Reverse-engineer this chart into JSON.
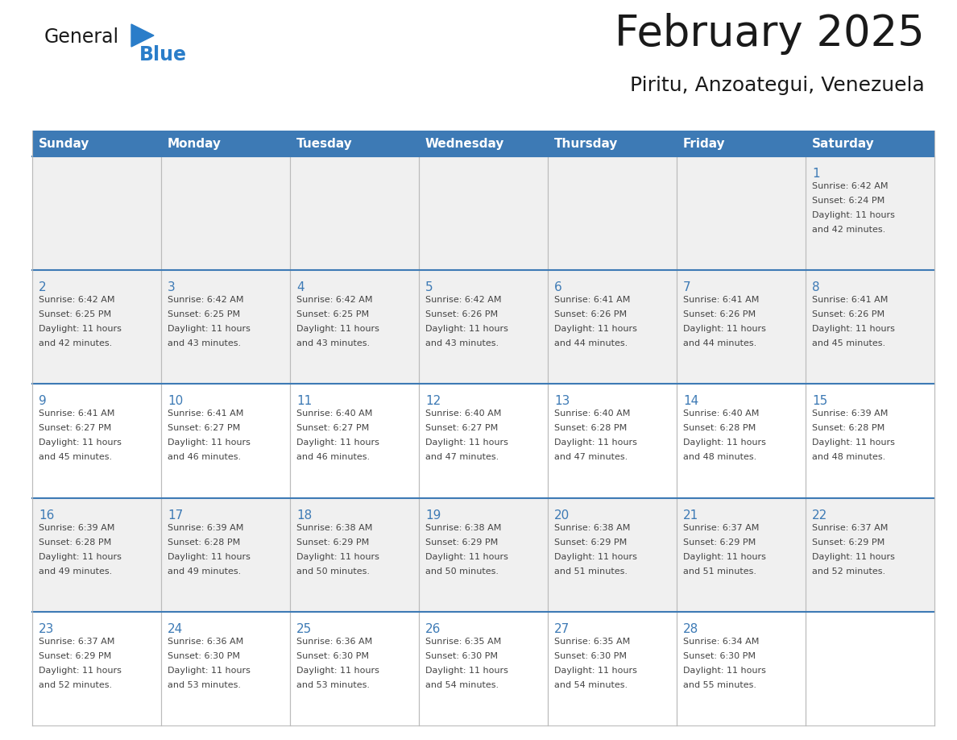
{
  "title": "February 2025",
  "subtitle": "Piritu, Anzoategui, Venezuela",
  "header_color": "#3d7ab5",
  "header_text_color": "#ffffff",
  "days_of_week": [
    "Sunday",
    "Monday",
    "Tuesday",
    "Wednesday",
    "Thursday",
    "Friday",
    "Saturday"
  ],
  "bg_color": "#ffffff",
  "row0_bg": "#f0f0f0",
  "row1_bg": "#f0f0f0",
  "row2_bg": "#ffffff",
  "row3_bg": "#f0f0f0",
  "row4_bg": "#ffffff",
  "cell_text_color": "#444444",
  "date_color": "#3d7ab5",
  "grid_color": "#bbbbbb",
  "row_border_color": "#3d7ab5",
  "calendar_data": [
    [
      null,
      null,
      null,
      null,
      null,
      null,
      {
        "day": 1,
        "sunrise": "6:42 AM",
        "sunset": "6:24 PM",
        "daylight": "11 hours",
        "daylight2": "and 42 minutes."
      }
    ],
    [
      {
        "day": 2,
        "sunrise": "6:42 AM",
        "sunset": "6:25 PM",
        "daylight": "11 hours",
        "daylight2": "and 42 minutes."
      },
      {
        "day": 3,
        "sunrise": "6:42 AM",
        "sunset": "6:25 PM",
        "daylight": "11 hours",
        "daylight2": "and 43 minutes."
      },
      {
        "day": 4,
        "sunrise": "6:42 AM",
        "sunset": "6:25 PM",
        "daylight": "11 hours",
        "daylight2": "and 43 minutes."
      },
      {
        "day": 5,
        "sunrise": "6:42 AM",
        "sunset": "6:26 PM",
        "daylight": "11 hours",
        "daylight2": "and 43 minutes."
      },
      {
        "day": 6,
        "sunrise": "6:41 AM",
        "sunset": "6:26 PM",
        "daylight": "11 hours",
        "daylight2": "and 44 minutes."
      },
      {
        "day": 7,
        "sunrise": "6:41 AM",
        "sunset": "6:26 PM",
        "daylight": "11 hours",
        "daylight2": "and 44 minutes."
      },
      {
        "day": 8,
        "sunrise": "6:41 AM",
        "sunset": "6:26 PM",
        "daylight": "11 hours",
        "daylight2": "and 45 minutes."
      }
    ],
    [
      {
        "day": 9,
        "sunrise": "6:41 AM",
        "sunset": "6:27 PM",
        "daylight": "11 hours",
        "daylight2": "and 45 minutes."
      },
      {
        "day": 10,
        "sunrise": "6:41 AM",
        "sunset": "6:27 PM",
        "daylight": "11 hours",
        "daylight2": "and 46 minutes."
      },
      {
        "day": 11,
        "sunrise": "6:40 AM",
        "sunset": "6:27 PM",
        "daylight": "11 hours",
        "daylight2": "and 46 minutes."
      },
      {
        "day": 12,
        "sunrise": "6:40 AM",
        "sunset": "6:27 PM",
        "daylight": "11 hours",
        "daylight2": "and 47 minutes."
      },
      {
        "day": 13,
        "sunrise": "6:40 AM",
        "sunset": "6:28 PM",
        "daylight": "11 hours",
        "daylight2": "and 47 minutes."
      },
      {
        "day": 14,
        "sunrise": "6:40 AM",
        "sunset": "6:28 PM",
        "daylight": "11 hours",
        "daylight2": "and 48 minutes."
      },
      {
        "day": 15,
        "sunrise": "6:39 AM",
        "sunset": "6:28 PM",
        "daylight": "11 hours",
        "daylight2": "and 48 minutes."
      }
    ],
    [
      {
        "day": 16,
        "sunrise": "6:39 AM",
        "sunset": "6:28 PM",
        "daylight": "11 hours",
        "daylight2": "and 49 minutes."
      },
      {
        "day": 17,
        "sunrise": "6:39 AM",
        "sunset": "6:28 PM",
        "daylight": "11 hours",
        "daylight2": "and 49 minutes."
      },
      {
        "day": 18,
        "sunrise": "6:38 AM",
        "sunset": "6:29 PM",
        "daylight": "11 hours",
        "daylight2": "and 50 minutes."
      },
      {
        "day": 19,
        "sunrise": "6:38 AM",
        "sunset": "6:29 PM",
        "daylight": "11 hours",
        "daylight2": "and 50 minutes."
      },
      {
        "day": 20,
        "sunrise": "6:38 AM",
        "sunset": "6:29 PM",
        "daylight": "11 hours",
        "daylight2": "and 51 minutes."
      },
      {
        "day": 21,
        "sunrise": "6:37 AM",
        "sunset": "6:29 PM",
        "daylight": "11 hours",
        "daylight2": "and 51 minutes."
      },
      {
        "day": 22,
        "sunrise": "6:37 AM",
        "sunset": "6:29 PM",
        "daylight": "11 hours",
        "daylight2": "and 52 minutes."
      }
    ],
    [
      {
        "day": 23,
        "sunrise": "6:37 AM",
        "sunset": "6:29 PM",
        "daylight": "11 hours",
        "daylight2": "and 52 minutes."
      },
      {
        "day": 24,
        "sunrise": "6:36 AM",
        "sunset": "6:30 PM",
        "daylight": "11 hours",
        "daylight2": "and 53 minutes."
      },
      {
        "day": 25,
        "sunrise": "6:36 AM",
        "sunset": "6:30 PM",
        "daylight": "11 hours",
        "daylight2": "and 53 minutes."
      },
      {
        "day": 26,
        "sunrise": "6:35 AM",
        "sunset": "6:30 PM",
        "daylight": "11 hours",
        "daylight2": "and 54 minutes."
      },
      {
        "day": 27,
        "sunrise": "6:35 AM",
        "sunset": "6:30 PM",
        "daylight": "11 hours",
        "daylight2": "and 54 minutes."
      },
      {
        "day": 28,
        "sunrise": "6:34 AM",
        "sunset": "6:30 PM",
        "daylight": "11 hours",
        "daylight2": "and 55 minutes."
      },
      null
    ]
  ],
  "logo_general_color": "#1a1a1a",
  "logo_blue_color": "#2a7dc9",
  "logo_triangle_color": "#2a7dc9",
  "title_color": "#1a1a1a",
  "subtitle_color": "#1a1a1a"
}
